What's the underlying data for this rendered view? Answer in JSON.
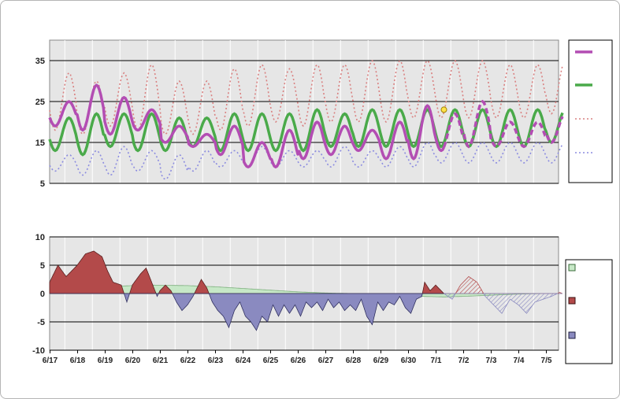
{
  "colors": {
    "plot_bg": "#e6e6e6",
    "grid_minor": "#ffffff",
    "grid_major": "#000000",
    "actual_temp": "#b34db3",
    "normal_temp": "#4aaa4a",
    "record_high": "#d98080",
    "record_low": "#8c8ce0",
    "normal_area": "#c7e8c7",
    "above_area": "#b34a4a",
    "below_area": "#8a8ac0"
  },
  "chart_data": [
    {
      "type": "line",
      "title": "",
      "xlabel": "",
      "ylabel": "",
      "ylim": [
        5,
        40
      ],
      "yticks": [
        "35",
        "25",
        "15",
        "5"
      ],
      "x_tick_labels": [
        "6/17",
        "6/18",
        "6/19",
        "6/20",
        "6/21",
        "6/22",
        "6/23",
        "6/24",
        "6/25",
        "6/26",
        "6/27",
        "6/28",
        "6/29",
        "6/30",
        "7/1",
        "7/2",
        "7/3",
        "7/4",
        "7/5"
      ],
      "x_range_days": [
        0,
        18.6
      ],
      "grid": true,
      "legend_position": "right",
      "legend_entries": [
        "",
        "",
        "",
        ""
      ],
      "highlight_point": {
        "day": 14.3,
        "value": 23
      },
      "series": [
        {
          "key": "actual",
          "style": "solid-thick",
          "observed_until_day": 14.3,
          "daily_min": [
            19,
            18,
            17,
            18,
            15,
            14,
            12,
            9,
            9,
            11,
            12,
            13,
            11,
            11,
            13,
            14,
            14,
            14,
            15
          ],
          "daily_max": [
            25,
            29,
            26,
            23,
            19,
            17,
            19,
            15,
            18,
            20,
            19,
            18,
            20,
            24,
            22,
            25,
            20,
            20,
            22
          ]
        },
        {
          "key": "normal",
          "style": "solid",
          "daily_min": [
            13,
            12,
            14,
            13,
            13,
            14,
            13,
            13,
            13,
            13,
            14,
            14,
            14,
            14,
            14,
            14,
            14,
            14,
            15
          ],
          "daily_max": [
            21,
            22,
            22,
            22,
            21,
            21,
            22,
            22,
            22,
            23,
            22,
            23,
            23,
            23,
            23,
            23,
            23,
            23,
            23
          ]
        },
        {
          "key": "record_high",
          "style": "dotted",
          "daily_min": [
            18,
            17,
            19,
            18,
            17,
            17,
            18,
            19,
            20,
            19,
            20,
            20,
            20,
            21,
            21,
            21,
            21,
            21,
            22
          ],
          "daily_max": [
            32,
            30,
            32,
            34,
            30,
            30,
            33,
            34,
            33,
            34,
            34,
            35,
            35,
            35,
            35,
            35,
            34,
            34,
            35
          ]
        },
        {
          "key": "record_low",
          "style": "dotted",
          "daily_min": [
            8,
            7,
            7,
            8,
            6,
            8,
            9,
            9,
            9,
            9,
            9,
            9,
            9,
            9,
            10,
            10,
            10,
            10,
            10
          ],
          "daily_max": [
            12,
            13,
            14,
            13,
            12,
            13,
            13,
            14,
            13,
            13,
            14,
            13,
            14,
            15,
            15,
            15,
            15,
            15,
            15
          ]
        }
      ]
    },
    {
      "type": "area",
      "title": "",
      "xlabel": "",
      "ylabel": "",
      "ylim": [
        -10,
        10
      ],
      "yticks": [
        "10",
        "5",
        "0",
        "-5",
        "-10"
      ],
      "legend_position": "right",
      "legend_entries": [
        "",
        "",
        ""
      ],
      "observed_until_day": 14.3,
      "series": [
        {
          "key": "normal_departure",
          "points": [
            [
              0,
              1
            ],
            [
              2.5,
              1.3
            ],
            [
              3.5,
              1.5
            ],
            [
              5,
              1.4
            ],
            [
              6,
              1.2
            ],
            [
              7,
              0.9
            ],
            [
              8,
              0.6
            ],
            [
              9,
              0.3
            ],
            [
              10,
              0.1
            ],
            [
              11,
              0
            ],
            [
              12,
              -0.1
            ],
            [
              13,
              -0.3
            ],
            [
              13.5,
              -0.5
            ],
            [
              14.3,
              -0.6
            ],
            [
              15,
              -0.5
            ],
            [
              16,
              -0.3
            ],
            [
              17,
              -0.1
            ],
            [
              18,
              0
            ],
            [
              18.6,
              0
            ]
          ]
        },
        {
          "key": "departure",
          "points": [
            [
              0,
              2
            ],
            [
              0.3,
              5
            ],
            [
              0.6,
              3
            ],
            [
              1,
              5
            ],
            [
              1.3,
              7
            ],
            [
              1.6,
              7.5
            ],
            [
              1.9,
              6.5
            ],
            [
              2.1,
              4
            ],
            [
              2.3,
              2
            ],
            [
              2.6,
              1.5
            ],
            [
              2.8,
              -1.5
            ],
            [
              3,
              1.5
            ],
            [
              3.3,
              3.5
            ],
            [
              3.5,
              4.5
            ],
            [
              3.7,
              2
            ],
            [
              3.9,
              -0.5
            ],
            [
              4,
              0.5
            ],
            [
              4.2,
              1.5
            ],
            [
              4.4,
              0.5
            ],
            [
              4.6,
              -1.5
            ],
            [
              4.8,
              -3
            ],
            [
              5,
              -2
            ],
            [
              5.2,
              -0.5
            ],
            [
              5.4,
              1.5
            ],
            [
              5.5,
              2.5
            ],
            [
              5.7,
              1
            ],
            [
              5.9,
              -1.5
            ],
            [
              6.1,
              -3
            ],
            [
              6.3,
              -4
            ],
            [
              6.5,
              -6
            ],
            [
              6.7,
              -3
            ],
            [
              6.9,
              -1.5
            ],
            [
              7.1,
              -4
            ],
            [
              7.3,
              -5
            ],
            [
              7.5,
              -6.5
            ],
            [
              7.7,
              -4
            ],
            [
              7.9,
              -5
            ],
            [
              8.1,
              -2
            ],
            [
              8.3,
              -4
            ],
            [
              8.5,
              -2
            ],
            [
              8.7,
              -3.5
            ],
            [
              8.9,
              -2
            ],
            [
              9.1,
              -4
            ],
            [
              9.3,
              -1.5
            ],
            [
              9.5,
              -2.5
            ],
            [
              9.7,
              -1.5
            ],
            [
              9.9,
              -3
            ],
            [
              10.1,
              -1
            ],
            [
              10.3,
              -2.5
            ],
            [
              10.5,
              -1.5
            ],
            [
              10.7,
              -3
            ],
            [
              10.9,
              -2
            ],
            [
              11.1,
              -3
            ],
            [
              11.3,
              -1
            ],
            [
              11.5,
              -4
            ],
            [
              11.7,
              -5.5
            ],
            [
              11.9,
              -1.5
            ],
            [
              12.1,
              -3
            ],
            [
              12.3,
              -1.5
            ],
            [
              12.5,
              -2
            ],
            [
              12.7,
              -0.5
            ],
            [
              12.9,
              -2.5
            ],
            [
              13.1,
              -3.5
            ],
            [
              13.3,
              -1
            ],
            [
              13.5,
              -0.5
            ],
            [
              13.6,
              2
            ],
            [
              13.8,
              0.5
            ],
            [
              14,
              1.5
            ],
            [
              14.2,
              0.5
            ],
            [
              14.3,
              0
            ]
          ]
        },
        {
          "key": "forecast_departure",
          "points": [
            [
              14.3,
              0
            ],
            [
              14.6,
              -1
            ],
            [
              14.9,
              1.5
            ],
            [
              15.2,
              3
            ],
            [
              15.5,
              2
            ],
            [
              15.8,
              -0.5
            ],
            [
              16.1,
              -2
            ],
            [
              16.4,
              -3.5
            ],
            [
              16.7,
              -1
            ],
            [
              17,
              -2
            ],
            [
              17.3,
              -3.5
            ],
            [
              17.6,
              -1.5
            ],
            [
              17.9,
              -1
            ],
            [
              18.2,
              -0.5
            ],
            [
              18.5,
              0.2
            ],
            [
              18.6,
              0
            ]
          ]
        }
      ]
    }
  ]
}
